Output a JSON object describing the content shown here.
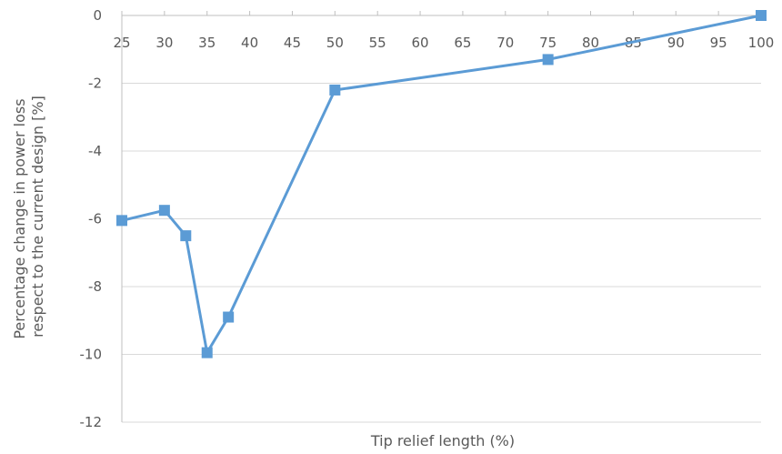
{
  "chart_data": {
    "type": "line",
    "title": "",
    "xlabel": "Tip relief length (%)",
    "ylabel_lines": [
      "Percentage change in power loss",
      "respect to the current design [%]"
    ],
    "xlim": [
      25,
      100
    ],
    "ylim": [
      -12,
      0
    ],
    "x_ticks": [
      25,
      30,
      35,
      40,
      45,
      50,
      55,
      60,
      65,
      70,
      75,
      80,
      85,
      90,
      95,
      100
    ],
    "y_ticks": [
      0,
      -2,
      -4,
      -6,
      -8,
      -10,
      -12
    ],
    "grid": "horizontal",
    "series": [
      {
        "x": [
          25,
          30,
          32.5,
          35,
          37.5,
          50,
          75,
          100
        ],
        "y": [
          -6.05,
          -5.75,
          -6.5,
          -9.95,
          -8.9,
          -2.2,
          -1.3,
          0.0
        ]
      }
    ],
    "colors": {
      "line": "#5b9bd5",
      "grid": "#d9d9d9",
      "axis": "#bfbfbf",
      "text": "#595959"
    }
  }
}
